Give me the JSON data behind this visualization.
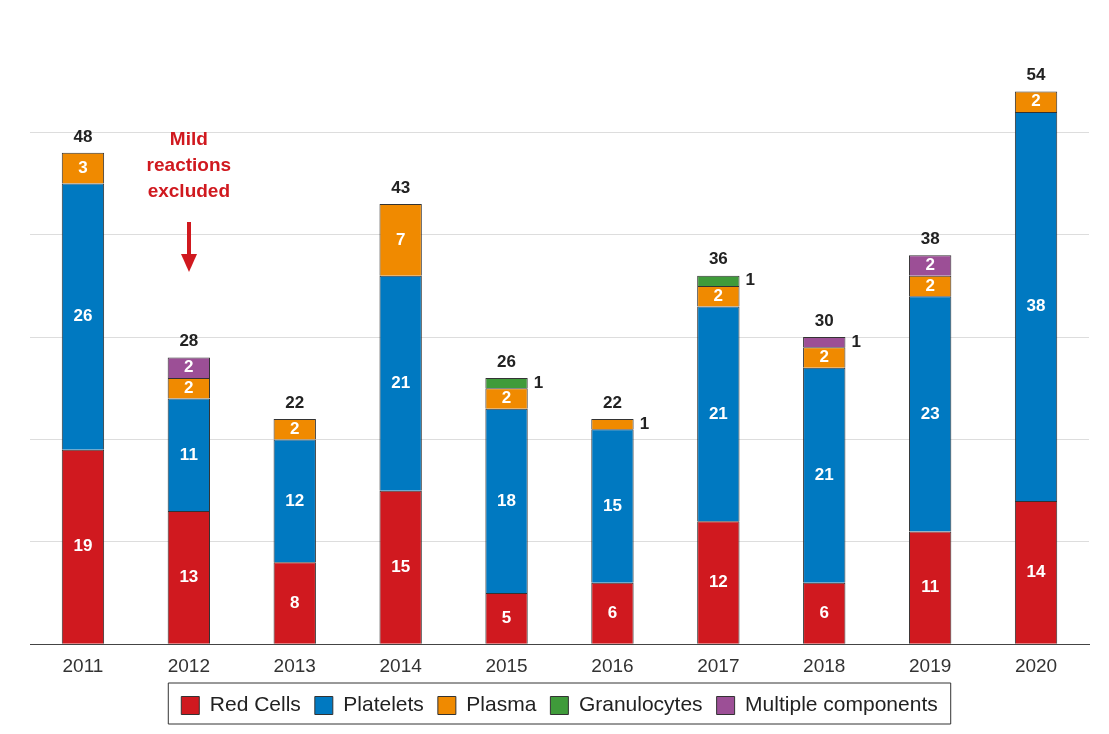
{
  "chart_data": {
    "type": "bar",
    "stacked": true,
    "categories": [
      "2011",
      "2012",
      "2013",
      "2014",
      "2015",
      "2016",
      "2017",
      "2018",
      "2019",
      "2020"
    ],
    "series": [
      {
        "name": "Red Cells",
        "color": "#d0191f",
        "values": [
          19,
          13,
          8,
          15,
          5,
          6,
          12,
          6,
          11,
          14
        ]
      },
      {
        "name": "Platelets",
        "color": "#0079c1",
        "values": [
          26,
          11,
          12,
          21,
          18,
          15,
          21,
          21,
          23,
          38
        ]
      },
      {
        "name": "Plasma",
        "color": "#f08a00",
        "values": [
          3,
          2,
          2,
          7,
          2,
          1,
          2,
          2,
          2,
          2
        ]
      },
      {
        "name": "Granulocytes",
        "color": "#3f9b3a",
        "values": [
          null,
          null,
          null,
          null,
          1,
          null,
          1,
          null,
          null,
          null
        ]
      },
      {
        "name": "Multiple components",
        "color": "#9c4f96",
        "values": [
          null,
          2,
          null,
          null,
          null,
          null,
          null,
          1,
          2,
          null
        ]
      }
    ],
    "totals": [
      "48",
      "28",
      "22",
      "43",
      "26",
      "22",
      "36",
      "30",
      "38",
      "54"
    ],
    "data_labels": true,
    "yticks": [
      {
        "value": 0,
        "label": null
      },
      {
        "value": 10,
        "label": null
      },
      {
        "value": 20,
        "label": null
      },
      {
        "value": 30,
        "label": null
      },
      {
        "value": 40,
        "label": null
      },
      {
        "value": 50,
        "label": null
      }
    ],
    "tick_labels": "x",
    "grid": "y",
    "legend": "bottom",
    "annotations": [
      "Mild reactions excluded"
    ]
  }
}
